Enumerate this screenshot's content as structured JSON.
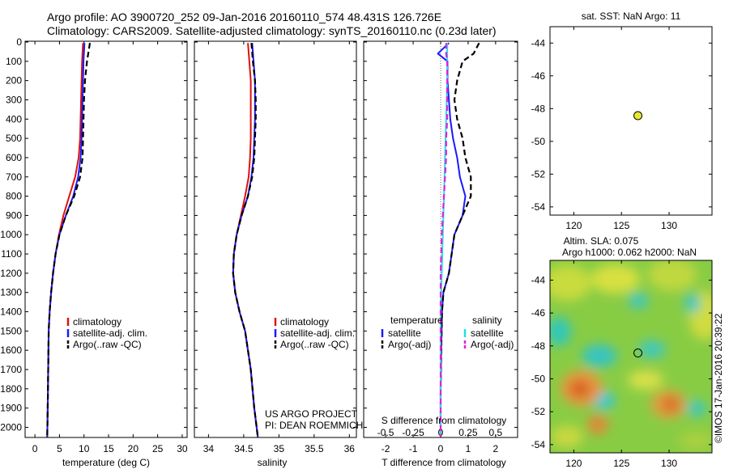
{
  "header": {
    "line1": "Argo profile: AO 3900720_252 09-Jan-2016 20160110_574 48.431S 126.726E",
    "line2": "Climatology: CARS2009. Satellite-adjusted climatology: synTS_20160110.nc (0.23d later)"
  },
  "colors": {
    "climatology": "#e01010",
    "satellite": "#1a1aff",
    "argo": "#000000",
    "salinity_satellite": "#22e0e0",
    "salinity_argo": "#e020e0",
    "marker": "#e8e830"
  },
  "chart_data": [
    {
      "type": "line",
      "id": "temperature",
      "xlabel": "temperature (deg C)",
      "xlim": [
        -2,
        31
      ],
      "xticks": [
        0,
        5,
        10,
        15,
        20,
        25,
        30
      ],
      "ylim": [
        2060,
        0
      ],
      "yticks": [
        0,
        100,
        200,
        300,
        400,
        500,
        600,
        700,
        800,
        900,
        1000,
        1100,
        1200,
        1300,
        1400,
        1500,
        1600,
        1700,
        1800,
        1900,
        2000
      ],
      "legend": [
        "climatology",
        "satellite-adj. clim.",
        "Argo(..raw -QC)"
      ],
      "series": [
        {
          "name": "climatology",
          "style": "solid",
          "color": "#e01010",
          "x": [
            9.8,
            9.6,
            9.5,
            9.4,
            9.3,
            9.2,
            8.9,
            8.2,
            7.0,
            5.8,
            4.9,
            4.2,
            3.7,
            3.3,
            3.0,
            2.8,
            2.7,
            2.6,
            2.5
          ],
          "y": [
            5,
            100,
            200,
            300,
            400,
            500,
            600,
            700,
            800,
            900,
            1000,
            1100,
            1200,
            1300,
            1400,
            1500,
            1700,
            1900,
            2050
          ]
        },
        {
          "name": "satellite-adj. clim.",
          "style": "solid",
          "color": "#1a1aff",
          "x": [
            10.1,
            9.9,
            9.8,
            9.7,
            9.6,
            9.5,
            9.3,
            8.8,
            7.8,
            6.3,
            5.0,
            4.2,
            3.7,
            3.3,
            3.0,
            2.8,
            2.7,
            2.6,
            2.5
          ],
          "y": [
            5,
            100,
            200,
            300,
            400,
            500,
            600,
            700,
            800,
            900,
            1000,
            1100,
            1200,
            1300,
            1400,
            1500,
            1700,
            1900,
            2050
          ]
        },
        {
          "name": "Argo(..raw -QC)",
          "style": "dashed",
          "color": "#000000",
          "x": [
            11.2,
            10.6,
            10.2,
            10.0,
            9.9,
            9.8,
            9.7,
            9.2,
            8.0,
            6.3,
            5.0,
            4.2,
            3.7,
            3.3,
            3.0,
            2.8,
            2.7,
            2.6,
            2.5
          ],
          "y": [
            5,
            100,
            200,
            300,
            400,
            500,
            600,
            700,
            800,
            900,
            1000,
            1100,
            1200,
            1300,
            1400,
            1500,
            1700,
            1900,
            2050
          ]
        }
      ]
    },
    {
      "type": "line",
      "id": "salinity",
      "xlabel": "salinity",
      "xlim": [
        33.8,
        36.1
      ],
      "xticks": [
        34,
        34.5,
        35,
        35.5,
        36
      ],
      "ylim": [
        2060,
        0
      ],
      "legend": [
        "climatology",
        "satellite-adj. clim.",
        "Argo(..raw -QC)"
      ],
      "series": [
        {
          "name": "climatology",
          "style": "solid",
          "color": "#e01010",
          "x": [
            34.56,
            34.58,
            34.6,
            34.6,
            34.6,
            34.6,
            34.59,
            34.57,
            34.52,
            34.46,
            34.4,
            34.36,
            34.35,
            34.38,
            34.44,
            34.52,
            34.6,
            34.65,
            34.7
          ],
          "y": [
            5,
            100,
            200,
            300,
            400,
            500,
            600,
            700,
            800,
            900,
            1000,
            1100,
            1200,
            1300,
            1400,
            1500,
            1700,
            1900,
            2050
          ]
        },
        {
          "name": "satellite-adj. clim.",
          "style": "solid",
          "color": "#1a1aff",
          "x": [
            34.62,
            34.64,
            34.66,
            34.66,
            34.66,
            34.65,
            34.64,
            34.61,
            34.56,
            34.47,
            34.4,
            34.36,
            34.35,
            34.38,
            34.44,
            34.52,
            34.6,
            34.65,
            34.7
          ],
          "y": [
            5,
            100,
            200,
            300,
            400,
            500,
            600,
            700,
            800,
            900,
            1000,
            1100,
            1200,
            1300,
            1400,
            1500,
            1700,
            1900,
            2050
          ]
        },
        {
          "name": "Argo(..raw -QC)",
          "style": "dashed",
          "color": "#000000",
          "x": [
            34.61,
            34.63,
            34.66,
            34.67,
            34.67,
            34.66,
            34.65,
            34.62,
            34.56,
            34.47,
            34.4,
            34.36,
            34.35,
            34.38,
            34.44,
            34.52,
            34.6,
            34.65,
            34.7
          ],
          "y": [
            5,
            100,
            200,
            300,
            400,
            500,
            600,
            700,
            800,
            900,
            1000,
            1100,
            1200,
            1300,
            1400,
            1500,
            1700,
            1900,
            2050
          ]
        }
      ],
      "annotation": [
        "US ARGO PROJECT",
        "PI: DEAN ROEMMICH"
      ]
    },
    {
      "type": "line",
      "id": "difference",
      "xlabel": "T difference from climatology",
      "xlabel_top": "S difference from climatology",
      "xlim": [
        -2.8,
        2.8
      ],
      "xticks": [
        -2,
        -1,
        0,
        1,
        2
      ],
      "xtick_labels": [
        "-2",
        "-1",
        "0",
        "1",
        "2"
      ],
      "s_ticks": [
        -0.5,
        -0.25,
        0,
        0.25,
        0.5
      ],
      "s_tick_labels": [
        "-0.5",
        "-0.25",
        "0",
        "0.25",
        "0.5"
      ],
      "ylim": [
        2060,
        0
      ],
      "legend_headers": [
        "temperature",
        "salinity"
      ],
      "legend": [
        "satellite",
        "Argo(-adj)",
        "satellite",
        "Argo(-adj)"
      ],
      "series": [
        {
          "name": "satellite",
          "group": "temperature",
          "style": "solid",
          "color": "#1a1aff",
          "x": [
            0.3,
            -0.1,
            0.25,
            0.25,
            0.3,
            0.35,
            0.45,
            0.6,
            0.7,
            0.9,
            0.8,
            0.5,
            0.4,
            0.3,
            0.1,
            0.05,
            0.02,
            0.0,
            0.0
          ],
          "y": [
            5,
            60,
            100,
            200,
            300,
            400,
            500,
            600,
            700,
            800,
            900,
            1000,
            1100,
            1200,
            1300,
            1400,
            1600,
            1800,
            2050
          ]
        },
        {
          "name": "Argo(-adj)",
          "group": "temperature",
          "style": "dashed",
          "color": "#000000",
          "x": [
            1.4,
            1.2,
            0.8,
            0.6,
            0.5,
            0.6,
            0.8,
            0.9,
            1.1,
            1.1,
            0.8,
            0.5,
            0.4,
            0.3,
            0.1,
            0.05,
            0.02,
            0.0,
            0.0
          ],
          "y": [
            5,
            60,
            100,
            200,
            300,
            400,
            500,
            600,
            700,
            800,
            900,
            1000,
            1100,
            1200,
            1300,
            1400,
            1600,
            1800,
            2050
          ]
        },
        {
          "name": "satellite",
          "group": "salinity",
          "style": "solid",
          "color": "#22e0e0",
          "x": [
            0.06,
            0.06,
            0.06,
            0.06,
            0.055,
            0.05,
            0.045,
            0.04,
            0.035,
            0.03,
            0.025,
            0.02,
            0.015,
            0.01,
            0.005,
            0.0,
            0.0,
            0.0,
            0.0
          ],
          "y": [
            5,
            60,
            100,
            200,
            300,
            400,
            500,
            600,
            700,
            800,
            900,
            1000,
            1100,
            1200,
            1300,
            1400,
            1600,
            1800,
            2050
          ]
        },
        {
          "name": "Argo(-adj)",
          "group": "salinity",
          "style": "dashed",
          "color": "#e020e0",
          "x": [
            0.05,
            0.05,
            0.06,
            0.06,
            0.06,
            0.06,
            0.05,
            0.05,
            0.04,
            0.03,
            0.02,
            0.01,
            0.005,
            0.0,
            0.0,
            0.0,
            0.0,
            0.0,
            0.0
          ],
          "y": [
            5,
            60,
            100,
            200,
            300,
            400,
            500,
            600,
            700,
            800,
            900,
            1000,
            1100,
            1200,
            1300,
            1400,
            1600,
            1800,
            2050
          ]
        }
      ]
    },
    {
      "type": "scatter",
      "id": "sst-map",
      "title": "sat. SST: NaN Argo: 11",
      "xlim": [
        117.5,
        134.5
      ],
      "ylim": [
        -54.5,
        -43
      ],
      "xticks": [
        120,
        125,
        130
      ],
      "yticks": [
        -44,
        -46,
        -48,
        -50,
        -52,
        -54
      ],
      "points": [
        {
          "x": 126.726,
          "y": -48.431
        }
      ]
    },
    {
      "type": "heatmap",
      "id": "sla-map",
      "title": [
        "Altim. SLA: 0.075",
        "Argo h1000: 0.062 h2000: NaN"
      ],
      "xlim": [
        117.5,
        134.5
      ],
      "ylim": [
        -54.5,
        -42.8
      ],
      "xticks": [
        120,
        125,
        130
      ],
      "yticks": [
        -44,
        -46,
        -48,
        -50,
        -52,
        -54
      ],
      "points": [
        {
          "x": 126.726,
          "y": -48.431
        }
      ],
      "watermark": "©IMOS 17-Jan-2016 20:39:22"
    }
  ]
}
